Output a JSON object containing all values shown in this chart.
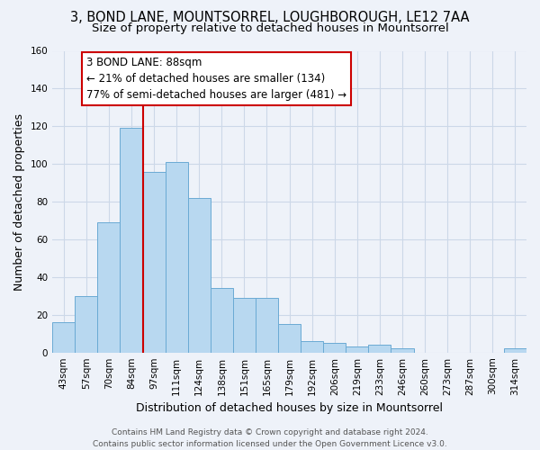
{
  "title": "3, BOND LANE, MOUNTSORREL, LOUGHBOROUGH, LE12 7AA",
  "subtitle": "Size of property relative to detached houses in Mountsorrel",
  "xlabel": "Distribution of detached houses by size in Mountsorrel",
  "ylabel": "Number of detached properties",
  "categories": [
    "43sqm",
    "57sqm",
    "70sqm",
    "84sqm",
    "97sqm",
    "111sqm",
    "124sqm",
    "138sqm",
    "151sqm",
    "165sqm",
    "179sqm",
    "192sqm",
    "206sqm",
    "219sqm",
    "233sqm",
    "246sqm",
    "260sqm",
    "273sqm",
    "287sqm",
    "300sqm",
    "314sqm"
  ],
  "values": [
    16,
    30,
    69,
    119,
    96,
    101,
    82,
    34,
    29,
    29,
    15,
    6,
    5,
    3,
    4,
    2,
    0,
    0,
    0,
    0,
    2
  ],
  "bar_color": "#b8d8f0",
  "bar_edge_color": "#6aaad4",
  "vline_x_index": 3.5,
  "vline_color": "#cc0000",
  "ylim": [
    0,
    160
  ],
  "yticks": [
    0,
    20,
    40,
    60,
    80,
    100,
    120,
    140,
    160
  ],
  "annotation_title": "3 BOND LANE: 88sqm",
  "annotation_line1": "← 21% of detached houses are smaller (134)",
  "annotation_line2": "77% of semi-detached houses are larger (481) →",
  "footer_line1": "Contains HM Land Registry data © Crown copyright and database right 2024.",
  "footer_line2": "Contains public sector information licensed under the Open Government Licence v3.0.",
  "background_color": "#eef2f9",
  "grid_color": "#ccd8e8",
  "title_fontsize": 10.5,
  "subtitle_fontsize": 9.5,
  "axis_label_fontsize": 9,
  "tick_fontsize": 7.5,
  "annotation_fontsize": 8.5,
  "footer_fontsize": 6.5
}
